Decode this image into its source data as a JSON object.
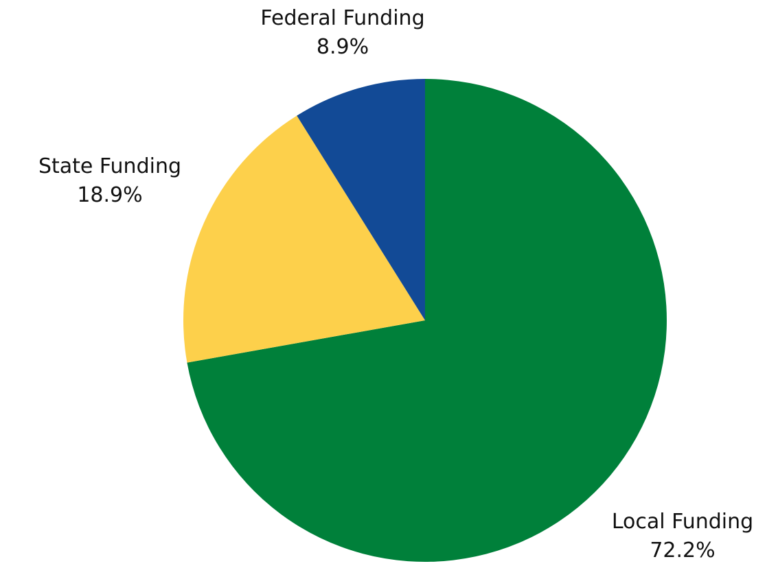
{
  "chart_data": {
    "type": "pie",
    "title": "",
    "slices": [
      {
        "label": "Local Funding",
        "value": 72.2,
        "value_label": "72.2%",
        "color": "#00803A"
      },
      {
        "label": "State Funding",
        "value": 18.9,
        "value_label": "18.9%",
        "color": "#FDD04B"
      },
      {
        "label": "Federal Funding",
        "value": 8.9,
        "value_label": "8.9%",
        "color": "#124A96"
      }
    ],
    "start_angle": "12 o'clock",
    "direction": "clockwise",
    "legend": "none"
  }
}
